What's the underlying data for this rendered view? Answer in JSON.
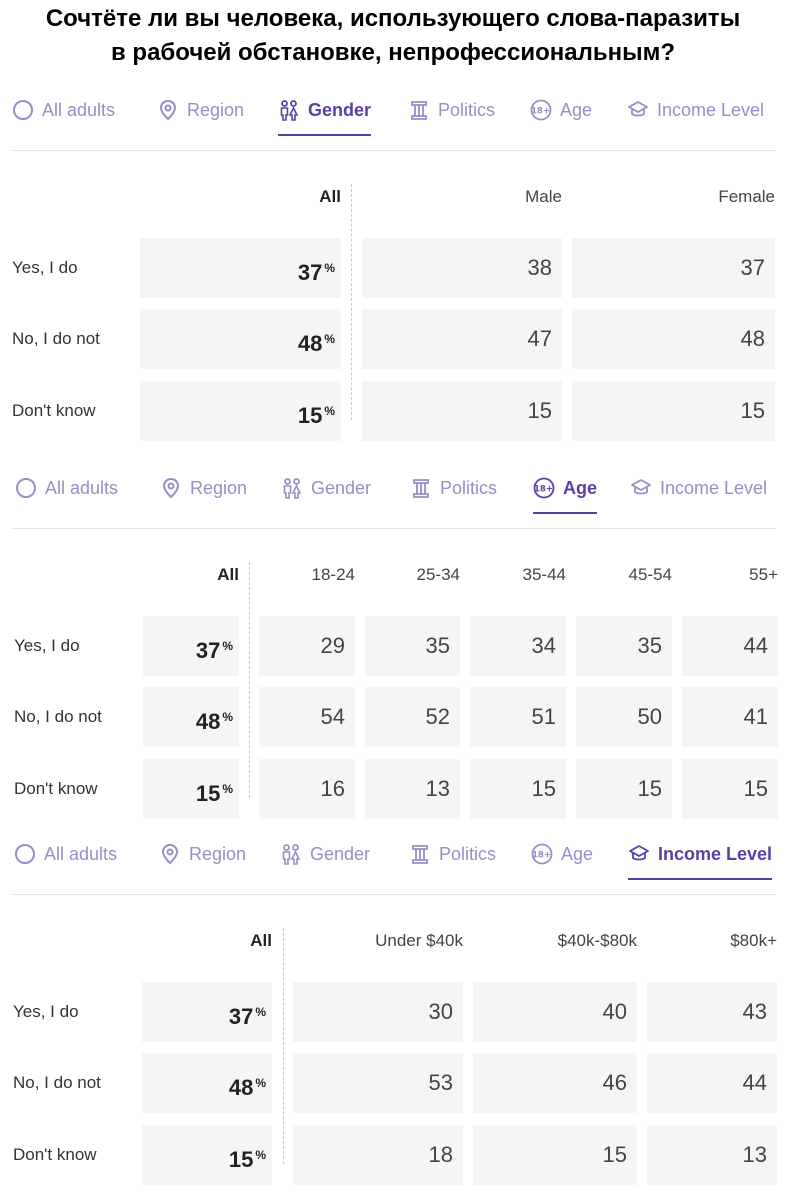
{
  "title_line1": "Сочтёте ли вы человека, использующего слова-паразиты",
  "title_line2": "в рабочей обстановке, непрофессиональным?",
  "tabs": [
    {
      "label": "All adults",
      "icon": "circle-icon"
    },
    {
      "label": "Region",
      "icon": "location-pin-icon"
    },
    {
      "label": "Gender",
      "icon": "gender-icon"
    },
    {
      "label": "Politics",
      "icon": "politics-icon"
    },
    {
      "label": "Age",
      "icon": "age-18-plus-icon"
    },
    {
      "label": "Income Level",
      "icon": "income-level-icon"
    }
  ],
  "colors": {
    "accent": "#5b3ea8",
    "tab_inactive": "#9b8cc8",
    "cell_bg": "#f5f5f7"
  },
  "all_label": "All",
  "pct_symbol": "%",
  "row_labels": [
    "Yes, I do",
    "No, I do not",
    "Don't know"
  ],
  "all_values": [
    "37",
    "48",
    "15"
  ],
  "sections": [
    {
      "active_tab": "Gender",
      "columns": [
        "Male",
        "Female"
      ],
      "rows": [
        [
          "38",
          "37"
        ],
        [
          "47",
          "48"
        ],
        [
          "15",
          "15"
        ]
      ]
    },
    {
      "active_tab": "Age",
      "columns": [
        "18-24",
        "25-34",
        "35-44",
        "45-54",
        "55+"
      ],
      "rows": [
        [
          "29",
          "35",
          "34",
          "35",
          "44"
        ],
        [
          "54",
          "52",
          "51",
          "50",
          "41"
        ],
        [
          "16",
          "13",
          "15",
          "15",
          "15"
        ]
      ]
    },
    {
      "active_tab": "Income Level",
      "columns": [
        "Under $40k",
        "$40k-$80k",
        "$80k+"
      ],
      "rows": [
        [
          "30",
          "40",
          "43"
        ],
        [
          "53",
          "46",
          "44"
        ],
        [
          "18",
          "15",
          "13"
        ]
      ]
    }
  ]
}
